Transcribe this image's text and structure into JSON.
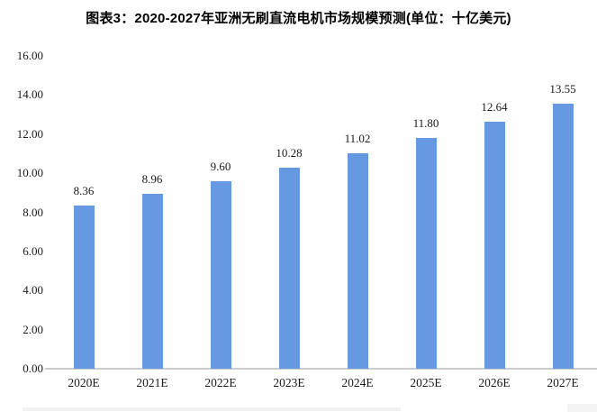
{
  "page": {
    "title": "图表3：2020-2027年亚洲无刷直流电机市场规模预测(单位：十亿美元)"
  },
  "colors": {
    "bar": "#6699E2",
    "axis_line": "#CCCCCC",
    "text": "#1A1A1A",
    "title_text": "#000000"
  },
  "chart_data": {
    "type": "bar",
    "title": "图表3：2020-2027年亚洲无刷直流电机市场规模预测(单位：十亿美元)",
    "unit_label": "单位：十亿美元",
    "categories": [
      "2020E",
      "2021E",
      "2022E",
      "2023E",
      "2024E",
      "2025E",
      "2026E",
      "2027E"
    ],
    "values": [
      8.36,
      8.96,
      9.6,
      10.28,
      11.02,
      11.8,
      12.64,
      13.55
    ],
    "value_labels": [
      "8.36",
      "8.96",
      "9.60",
      "10.28",
      "11.02",
      "11.80",
      "12.64",
      "13.55"
    ],
    "y_tick_labels": [
      "16.00",
      "14.00",
      "12.00",
      "10.00",
      "8.00",
      "6.00",
      "4.00",
      "2.00",
      "0.00"
    ],
    "xlabel": "",
    "ylabel": "",
    "ylim": [
      0,
      16
    ],
    "grid": false,
    "legend": null,
    "bar_color": "#6699E2"
  }
}
